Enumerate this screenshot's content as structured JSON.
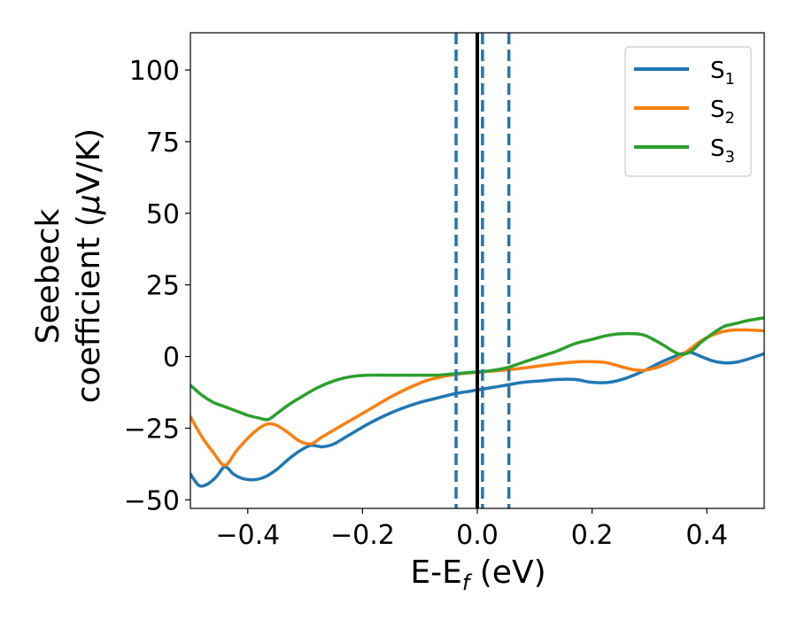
{
  "chart_data": {
    "type": "line",
    "xlabel": {
      "main": "E-E",
      "sub": "f",
      "suffix": " (eV)"
    },
    "ylabel": {
      "line1": "Seebeck",
      "line2_prefix": "coefficient  (",
      "mu": "μ",
      "line2_suffix": "V/K)"
    },
    "xlim": [
      -0.5,
      0.5
    ],
    "ylim": [
      -53,
      113
    ],
    "x_ticks": [
      -0.4,
      -0.2,
      0.0,
      0.2,
      0.4
    ],
    "x_tick_labels": [
      "−0.4",
      "−0.2",
      "0.0",
      "0.2",
      "0.4"
    ],
    "y_ticks": [
      -50,
      -25,
      0,
      25,
      50,
      75,
      100
    ],
    "y_tick_labels": [
      "−50",
      "−25",
      "0",
      "25",
      "50",
      "75",
      "100"
    ],
    "legend_position": "top-right",
    "vertical_lines": [
      {
        "x": 0.0,
        "style": "solid",
        "color": "#000000"
      },
      {
        "x": -0.037,
        "style": "dashed",
        "color": "#1f77b4"
      },
      {
        "x": 0.009,
        "style": "dashed",
        "color": "#1f77b4"
      },
      {
        "x": 0.055,
        "style": "dashed",
        "color": "#1f77b4"
      }
    ],
    "series": [
      {
        "name": "S",
        "sub": "1",
        "color": "#1f77b4",
        "x": [
          -0.5,
          -0.485,
          -0.47,
          -0.455,
          -0.44,
          -0.425,
          -0.41,
          -0.39,
          -0.37,
          -0.35,
          -0.33,
          -0.31,
          -0.29,
          -0.27,
          -0.25,
          -0.22,
          -0.19,
          -0.16,
          -0.13,
          -0.1,
          -0.07,
          -0.04,
          -0.01,
          0.02,
          0.05,
          0.08,
          0.11,
          0.14,
          0.17,
          0.2,
          0.23,
          0.26,
          0.29,
          0.32,
          0.35,
          0.37,
          0.39,
          0.41,
          0.43,
          0.45,
          0.47,
          0.5
        ],
        "y": [
          -41,
          -45,
          -44.5,
          -42,
          -38.5,
          -41,
          -42.5,
          -43,
          -42,
          -39.5,
          -36,
          -33,
          -31,
          -31.5,
          -30.5,
          -27,
          -23.5,
          -20.5,
          -18,
          -16,
          -14.5,
          -13,
          -12,
          -11,
          -10,
          -9,
          -8.5,
          -8,
          -8,
          -9,
          -9,
          -7.5,
          -5,
          -2,
          0.5,
          1.5,
          0,
          -1.5,
          -2.2,
          -2,
          -1,
          1
        ]
      },
      {
        "name": "S",
        "sub": "2",
        "color": "#ff7f0e",
        "x": [
          -0.5,
          -0.48,
          -0.46,
          -0.44,
          -0.42,
          -0.4,
          -0.38,
          -0.365,
          -0.35,
          -0.33,
          -0.31,
          -0.29,
          -0.27,
          -0.24,
          -0.21,
          -0.18,
          -0.15,
          -0.12,
          -0.09,
          -0.06,
          -0.03,
          0.0,
          0.03,
          0.06,
          0.1,
          0.14,
          0.18,
          0.22,
          0.25,
          0.27,
          0.29,
          0.31,
          0.33,
          0.35,
          0.37,
          0.39,
          0.41,
          0.43,
          0.45,
          0.47,
          0.5
        ],
        "y": [
          -21,
          -28,
          -33.5,
          -38,
          -33,
          -28.5,
          -25,
          -23.5,
          -24,
          -26.5,
          -29.5,
          -30.5,
          -28,
          -24.5,
          -21,
          -17.5,
          -14,
          -11,
          -8.5,
          -7,
          -6,
          -5.5,
          -5,
          -4.5,
          -3.5,
          -2.5,
          -1.8,
          -2,
          -3.5,
          -4.5,
          -4.8,
          -4,
          -2.5,
          -0.5,
          2.5,
          5.5,
          7.5,
          8.8,
          9.3,
          9.3,
          9
        ]
      },
      {
        "name": "S",
        "sub": "3",
        "color": "#2ca02c",
        "x": [
          -0.5,
          -0.48,
          -0.46,
          -0.44,
          -0.42,
          -0.4,
          -0.38,
          -0.365,
          -0.35,
          -0.33,
          -0.31,
          -0.28,
          -0.25,
          -0.22,
          -0.19,
          -0.16,
          -0.13,
          -0.1,
          -0.07,
          -0.04,
          -0.01,
          0.02,
          0.05,
          0.08,
          0.11,
          0.14,
          0.17,
          0.2,
          0.23,
          0.26,
          0.29,
          0.32,
          0.35,
          0.37,
          0.39,
          0.41,
          0.43,
          0.45,
          0.47,
          0.5
        ],
        "y": [
          -10,
          -13.5,
          -16,
          -17.5,
          -19,
          -20.5,
          -21.5,
          -22,
          -20,
          -17,
          -14.5,
          -11,
          -8.5,
          -7,
          -6.5,
          -6.5,
          -6.5,
          -6.5,
          -6.5,
          -6,
          -5.5,
          -5,
          -4,
          -2,
          0,
          2,
          4.5,
          6,
          7.5,
          8,
          7.5,
          4.5,
          1,
          1.5,
          5,
          8,
          10.5,
          11.5,
          12.5,
          13.5
        ]
      }
    ]
  }
}
